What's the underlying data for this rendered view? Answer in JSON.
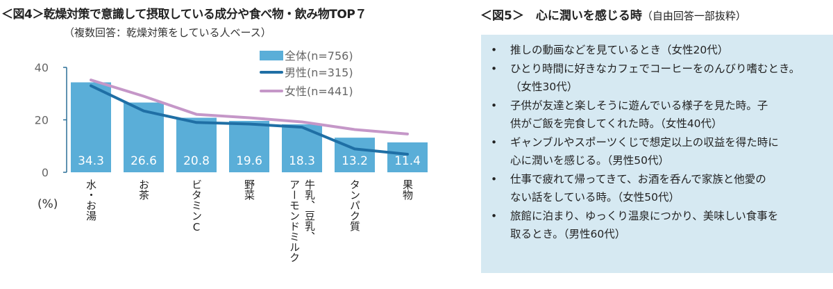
{
  "fig4": {
    "title": "＜図4＞乾燥対策で意識して摂取している成分や食べ物・飲み物TOP７",
    "subtitle": "（複数回答：乾燥対策をしている人ベース）"
  },
  "chart_data": {
    "type": "bar",
    "categories": [
      "水・お湯",
      "お茶",
      "ビタミンC",
      "野菜",
      "牛乳、豆乳、\nアーモンドミルク",
      "タンパク質",
      "果物"
    ],
    "series": [
      {
        "name": "全体(n=756)",
        "type": "bar",
        "color": "#5aaed8",
        "values": [
          34.3,
          26.6,
          20.8,
          19.6,
          18.3,
          13.2,
          11.4
        ]
      },
      {
        "name": "男性(n=315)",
        "type": "line",
        "color": "#1f6fa5",
        "values": [
          33.0,
          23.4,
          19.0,
          18.4,
          17.2,
          8.9,
          6.9
        ]
      },
      {
        "name": "女性(n=441)",
        "type": "line",
        "color": "#c597c8",
        "values": [
          35.2,
          29.0,
          22.1,
          20.8,
          19.2,
          16.3,
          14.6
        ]
      }
    ],
    "ylabel": "(%)",
    "ylim": [
      0,
      40
    ],
    "yticks": [
      "0",
      "20",
      "40"
    ],
    "grid": false,
    "legend": "top-right"
  },
  "fig5": {
    "title": "＜図5＞　心に潤いを感じる時",
    "note": "（自由回答一部抜粋）",
    "items": [
      "推しの動画などを見ているとき（女性20代）",
      "ひとり時間に好きなカフェでコーヒーをのんびり嗜むとき。\n（女性30代）",
      "子供が友達と楽しそうに遊んでいる様子を見た時。子\n供がご飯を完食してくれた時。（女性40代）",
      "ギャンブルやスポーツくじで想定以上の収益を得た時に\n心に潤いを感じる。（男性50代）",
      "仕事で疲れて帰ってきて、お酒を呑んで家族と他愛の\nない話をしている時。（女性50代）",
      "旅館に泊まり、ゆっくり温泉につかり、美味しい食事を\n取るとき。（男性60代）"
    ]
  }
}
